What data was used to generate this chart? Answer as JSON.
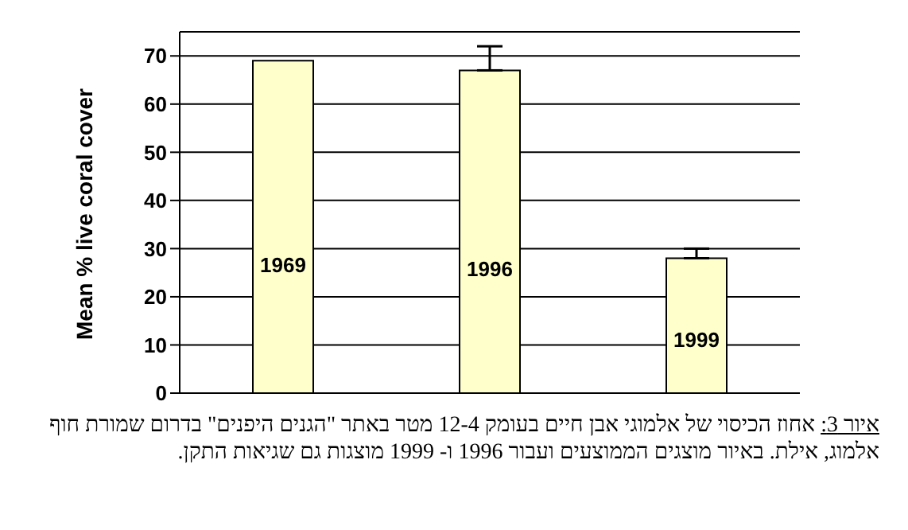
{
  "chart_data": {
    "type": "bar",
    "ylabel": "Mean %  live coral cover",
    "categories": [
      "1969",
      "1996",
      "1999"
    ],
    "values": [
      69,
      67,
      28
    ],
    "errors": [
      null,
      [
        67,
        72
      ],
      [
        28,
        30
      ]
    ],
    "color": "#ffffcc",
    "ylim": [
      0,
      75
    ],
    "yticks": [
      0,
      10,
      20,
      30,
      40,
      50,
      60,
      70
    ],
    "grid": "y",
    "annotations": [
      "איור 3: אחוז הכיסוי של אלמוגי אבן חיים בעומק 12-4 מטר באתר \"הגנים היפנים\" בדרום שמורת חוף אלמוג, אילת. באיור מוצגים הממוצעים ועבור 1996 ו- 1999 מוצגות גם שגיאות התקן."
    ]
  }
}
